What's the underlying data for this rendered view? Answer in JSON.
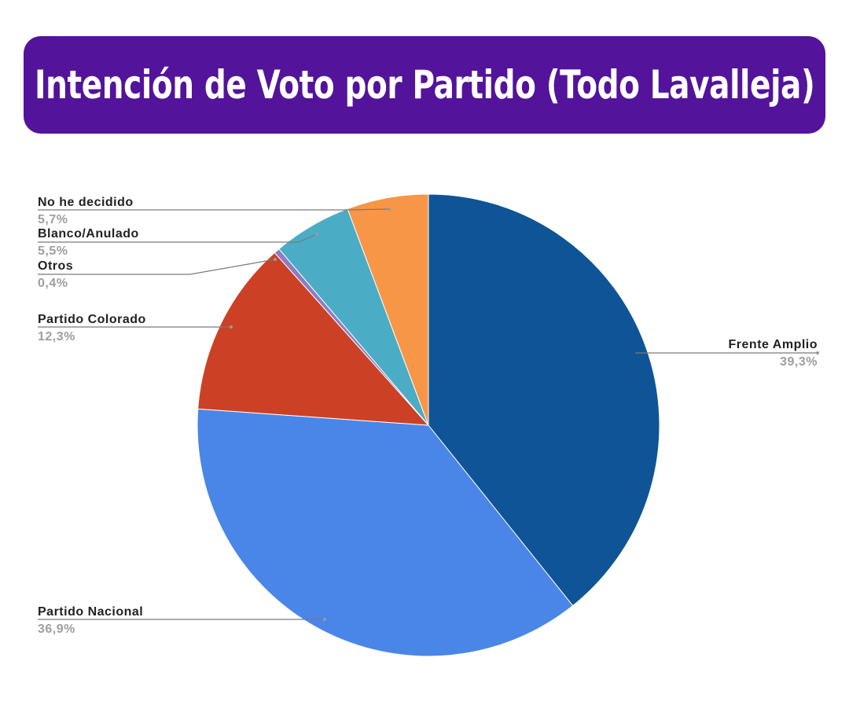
{
  "title": "Intención de Voto por Partido (Todo Lavalleja)",
  "colors": {
    "banner": "#53139b",
    "title_text": "#ffffff"
  },
  "chart_data": {
    "type": "pie",
    "title": "Intención de Voto por Partido (Todo Lavalleja)",
    "start": "12 o'clock",
    "direction": "clockwise",
    "slices": [
      {
        "label": "Frente Amplio",
        "value": 39.3,
        "display": "39,3%",
        "color": "#0f5496"
      },
      {
        "label": "Partido Nacional",
        "value": 36.9,
        "display": "36,9%",
        "color": "#4a86e8"
      },
      {
        "label": "Partido Colorado",
        "value": 12.3,
        "display": "12,3%",
        "color": "#cc4125"
      },
      {
        "label": "Otros",
        "value": 0.4,
        "display": "0,4%",
        "color": "#8e7cc3"
      },
      {
        "label": "Blanco/Anulado",
        "value": 5.5,
        "display": "5,5%",
        "color": "#4bacc6"
      },
      {
        "label": "No he decidido",
        "value": 5.7,
        "display": "5,7%",
        "color": "#f79646"
      }
    ]
  }
}
